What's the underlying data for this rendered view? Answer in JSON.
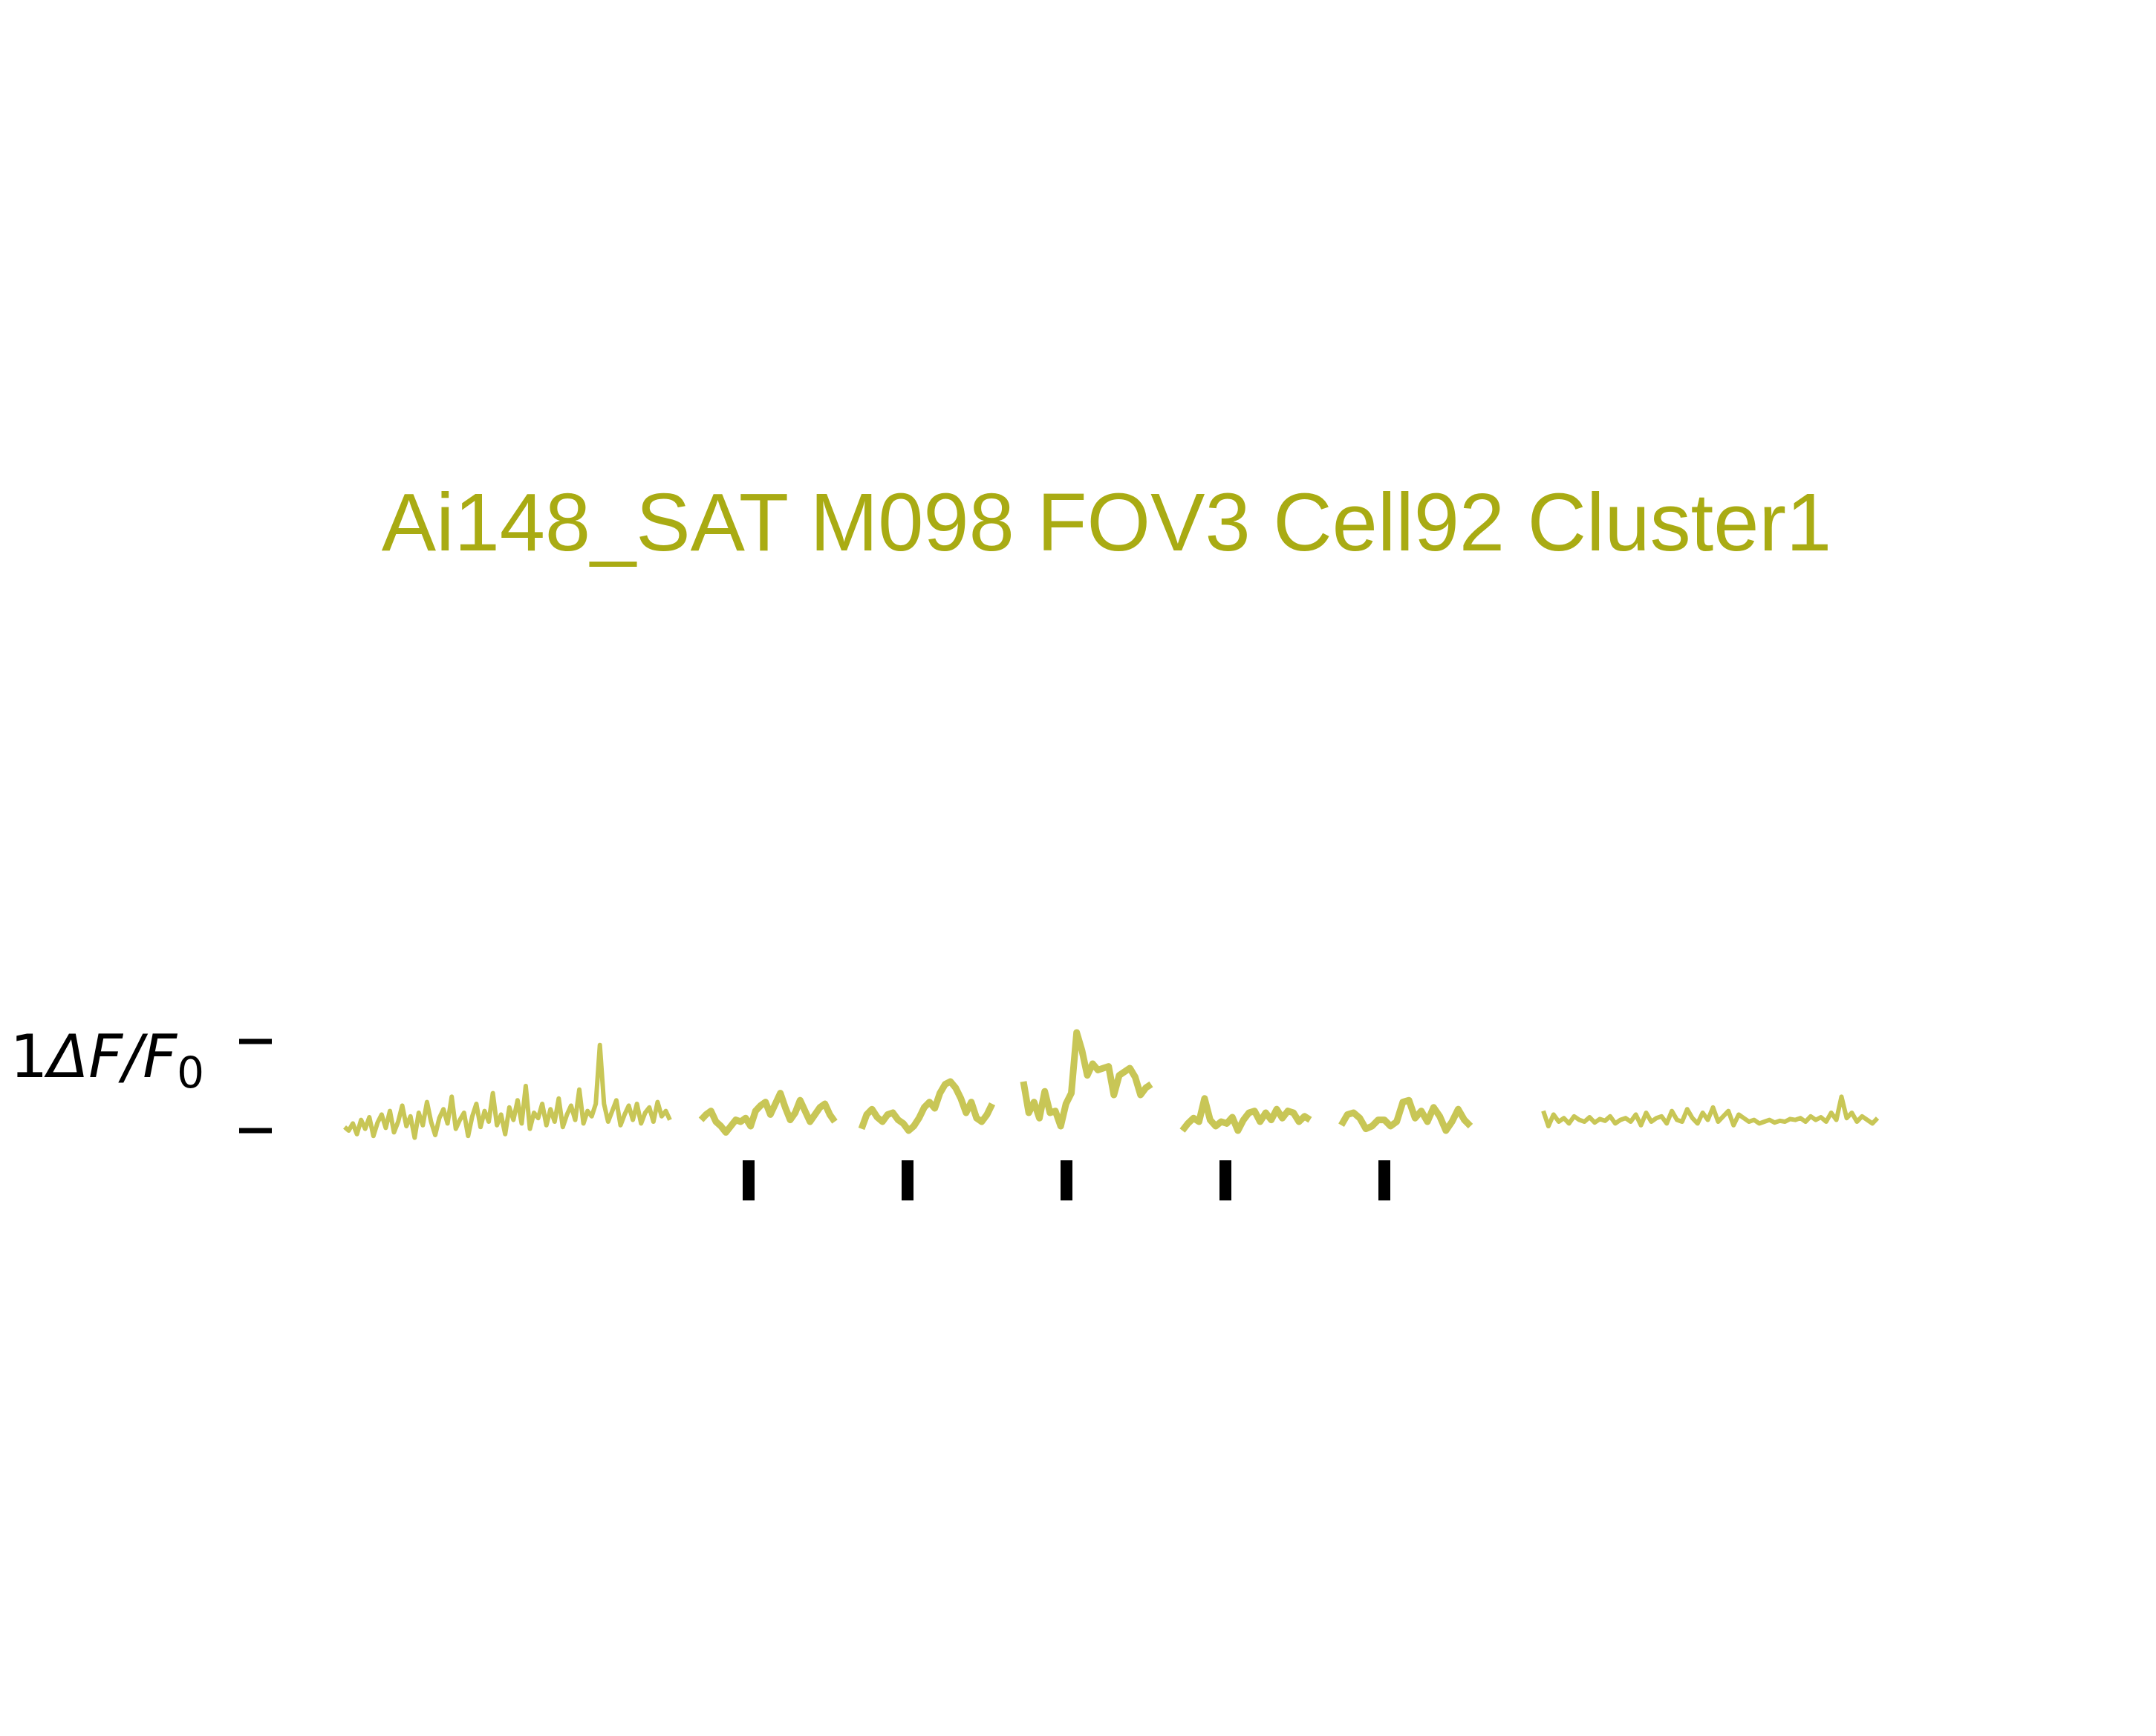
{
  "chart_data": {
    "type": "line",
    "title": "Ai148_SAT M098 FOV3 Cell92 Cluster1",
    "ylabel_prefix": "1",
    "ylabel_symbol": "ΔF/F",
    "ylabel_subscript": "0",
    "colors": {
      "trace": "#c8c656",
      "title": "#a9ab13",
      "markers": "#000000",
      "axis": "#000000"
    },
    "ylim": [
      -0.1,
      1.2
    ],
    "scale_bar": {
      "bottom": 0,
      "top": 1
    },
    "segments": [
      {
        "name": "baseline-pre",
        "values": [
          0.04,
          0.0,
          0.08,
          -0.04,
          0.12,
          0.02,
          0.15,
          -0.06,
          0.09,
          0.18,
          0.03,
          0.22,
          -0.02,
          0.1,
          0.28,
          0.05,
          0.16,
          -0.08,
          0.2,
          0.06,
          0.32,
          0.1,
          -0.05,
          0.14,
          0.24,
          0.08,
          0.38,
          0.02,
          0.12,
          0.2,
          -0.06,
          0.16,
          0.3,
          0.04,
          0.22,
          0.1,
          0.42,
          0.06,
          0.18,
          -0.04,
          0.26,
          0.12,
          0.34,
          0.08,
          0.5,
          0.02,
          0.2,
          0.14,
          0.3,
          0.06,
          0.24,
          0.1,
          0.36,
          0.04,
          0.18,
          0.28,
          0.12,
          0.46,
          0.08,
          0.22,
          0.16,
          0.3,
          0.96,
          0.3,
          0.1,
          0.22,
          0.34,
          0.06,
          0.18,
          0.28,
          0.12,
          0.3,
          0.08,
          0.2,
          0.26,
          0.1,
          0.32,
          0.16,
          0.22,
          0.12
        ]
      },
      {
        "name": "trial-1",
        "values": [
          0.12,
          0.18,
          0.22,
          0.1,
          0.05,
          -0.02,
          0.05,
          0.12,
          0.1,
          0.14,
          0.05,
          0.22,
          0.28,
          0.32,
          0.18,
          0.3,
          0.42,
          0.26,
          0.12,
          0.2,
          0.34,
          0.22,
          0.1,
          0.18,
          0.26,
          0.3,
          0.18,
          0.1
        ]
      },
      {
        "name": "trial-2",
        "values": [
          0.02,
          0.18,
          0.24,
          0.15,
          0.1,
          0.18,
          0.2,
          0.12,
          0.08,
          0.0,
          0.05,
          0.14,
          0.26,
          0.32,
          0.25,
          0.42,
          0.52,
          0.55,
          0.48,
          0.36,
          0.2,
          0.32,
          0.14,
          0.1,
          0.18,
          0.3
        ]
      },
      {
        "name": "trial-3",
        "values": [
          0.55,
          0.2,
          0.32,
          0.14,
          0.44,
          0.2,
          0.22,
          0.05,
          0.3,
          0.42,
          1.1,
          0.9,
          0.62,
          0.75,
          0.68,
          0.7,
          0.72,
          0.4,
          0.62,
          0.66,
          0.7,
          0.6,
          0.4,
          0.48,
          0.52
        ]
      },
      {
        "name": "trial-4",
        "values": [
          0.0,
          0.08,
          0.14,
          0.1,
          0.36,
          0.12,
          0.05,
          0.1,
          0.08,
          0.15,
          0.0,
          0.12,
          0.2,
          0.22,
          0.1,
          0.2,
          0.12,
          0.24,
          0.14,
          0.22,
          0.2,
          0.1,
          0.16,
          0.12
        ]
      },
      {
        "name": "trial-5",
        "values": [
          0.06,
          0.18,
          0.2,
          0.14,
          0.02,
          0.05,
          0.12,
          0.12,
          0.05,
          0.1,
          0.32,
          0.34,
          0.14,
          0.22,
          0.1,
          0.26,
          0.16,
          0.0,
          0.1,
          0.24,
          0.12,
          0.05
        ]
      },
      {
        "name": "baseline-post",
        "values": [
          0.22,
          0.05,
          0.18,
          0.1,
          0.14,
          0.08,
          0.16,
          0.12,
          0.1,
          0.15,
          0.09,
          0.13,
          0.11,
          0.16,
          0.08,
          0.12,
          0.14,
          0.1,
          0.18,
          0.06,
          0.2,
          0.1,
          0.14,
          0.16,
          0.08,
          0.22,
          0.12,
          0.1,
          0.24,
          0.14,
          0.08,
          0.2,
          0.12,
          0.26,
          0.1,
          0.16,
          0.22,
          0.06,
          0.18,
          0.14,
          0.1,
          0.12,
          0.08,
          0.1,
          0.12,
          0.09,
          0.11,
          0.1,
          0.13,
          0.12,
          0.14,
          0.1,
          0.16,
          0.12,
          0.15,
          0.1,
          0.2,
          0.12,
          0.38,
          0.14,
          0.2,
          0.1,
          0.16,
          0.12,
          0.08,
          0.14
        ]
      }
    ],
    "stim_markers": [
      1,
      2,
      3,
      4,
      5
    ]
  }
}
